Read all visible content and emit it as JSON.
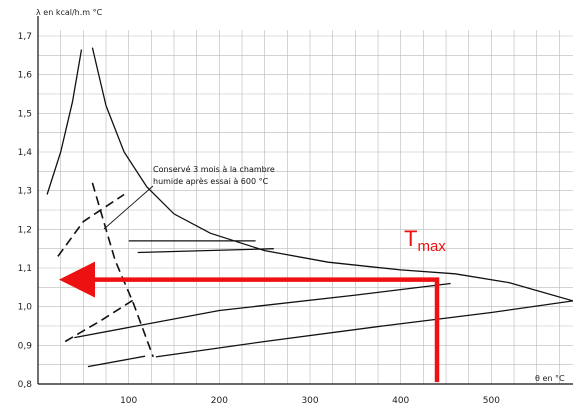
{
  "chart_data": {
    "type": "line",
    "ylabel": "λ en kcal/h.m °C",
    "xlabel": "θ en °C",
    "xlim": [
      0,
      590
    ],
    "ylim": [
      0.8,
      1.7
    ],
    "x_ticks": [
      "100",
      "200",
      "300",
      "400",
      "500"
    ],
    "y_ticks": [
      "0,8",
      "0,9",
      "1,0",
      "1,1",
      "1,2",
      "1,3",
      "1,4",
      "1,5",
      "1,6",
      "1,7"
    ],
    "grid": true,
    "annotation": {
      "lines": [
        "Conservé 3 mois à la chambre",
        "humide après essai à 600 °C"
      ]
    },
    "marker_label": {
      "main": "T",
      "sub": "max",
      "color": "#ee1111"
    },
    "series": [
      {
        "style": "solid",
        "points": [
          [
            10,
            1.29
          ],
          [
            25,
            1.4
          ],
          [
            38,
            1.53
          ],
          [
            48,
            1.665
          ]
        ]
      },
      {
        "style": "solid",
        "points": [
          [
            60,
            1.67
          ],
          [
            75,
            1.52
          ],
          [
            95,
            1.4
          ],
          [
            120,
            1.31
          ],
          [
            150,
            1.24
          ],
          [
            190,
            1.19
          ],
          [
            250,
            1.145
          ],
          [
            320,
            1.115
          ],
          [
            400,
            1.095
          ],
          [
            460,
            1.085
          ],
          [
            520,
            1.062
          ],
          [
            590,
            1.015
          ]
        ]
      },
      {
        "style": "solid",
        "points": [
          [
            100,
            1.17
          ],
          [
            240,
            1.17
          ]
        ]
      },
      {
        "style": "solid",
        "points": [
          [
            110,
            1.14
          ],
          [
            260,
            1.15
          ]
        ]
      },
      {
        "style": "solid",
        "points": [
          [
            40,
            0.92
          ],
          [
            200,
            0.99
          ],
          [
            350,
            1.03
          ],
          [
            455,
            1.06
          ]
        ]
      },
      {
        "style": "solid",
        "points": [
          [
            130,
            0.87
          ],
          [
            250,
            0.91
          ],
          [
            380,
            0.95
          ],
          [
            500,
            0.985
          ],
          [
            590,
            1.015
          ]
        ]
      },
      {
        "style": "solid",
        "points": [
          [
            55,
            0.845
          ],
          [
            118,
            0.872
          ]
        ]
      },
      {
        "style": "dashed",
        "points": [
          [
            22,
            1.13
          ],
          [
            50,
            1.22
          ],
          [
            95,
            1.29
          ]
        ]
      },
      {
        "style": "dashed",
        "points": [
          [
            60,
            1.32
          ],
          [
            85,
            1.12
          ],
          [
            105,
            1.01
          ],
          [
            127,
            0.87
          ]
        ]
      },
      {
        "style": "dashed",
        "points": [
          [
            30,
            0.91
          ],
          [
            70,
            0.965
          ],
          [
            107,
            1.02
          ]
        ]
      }
    ],
    "highlight_path": {
      "color": "#ee1111",
      "points": [
        [
          440,
          0.805
        ],
        [
          440,
          1.07
        ],
        [
          48,
          1.07
        ]
      ]
    }
  }
}
